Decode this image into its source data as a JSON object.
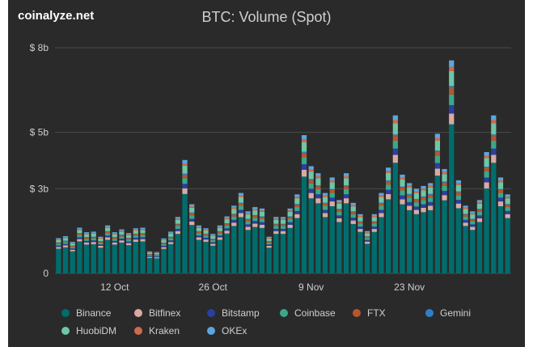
{
  "brand": "coinalyze.net",
  "title": "BTC: Volume (Spot)",
  "chart_data": {
    "type": "bar",
    "stacked": true,
    "title": "BTC: Volume (Spot)",
    "xlabel": "",
    "ylabel": "",
    "ylim": [
      0,
      8.2
    ],
    "yticks": [
      0,
      3,
      5,
      8
    ],
    "ytick_labels": [
      "0",
      "$ 3b",
      "$ 5b",
      "$ 8b"
    ],
    "xtick_labels": [
      {
        "label": "12 Oct",
        "index": 8
      },
      {
        "label": "26 Oct",
        "index": 22
      },
      {
        "label": "9 Nov",
        "index": 36
      },
      {
        "label": "23 Nov",
        "index": 50
      }
    ],
    "grid": "horizontal",
    "legend_position": "bottom",
    "totals_billion": [
      1.25,
      1.32,
      1.12,
      1.62,
      1.46,
      1.48,
      1.3,
      1.7,
      1.46,
      1.56,
      1.43,
      1.6,
      1.62,
      0.78,
      0.76,
      1.24,
      1.48,
      2.0,
      4.02,
      2.45,
      1.7,
      1.6,
      1.4,
      1.7,
      2.02,
      2.4,
      2.85,
      2.2,
      2.35,
      2.3,
      1.3,
      2.0,
      2.0,
      2.3,
      2.8,
      4.9,
      3.8,
      3.55,
      2.85,
      3.4,
      2.6,
      3.55,
      2.5,
      2.1,
      1.5,
      2.1,
      2.85,
      3.75,
      5.6,
      3.5,
      3.2,
      3.0,
      3.1,
      3.2,
      4.95,
      3.7,
      7.55,
      3.3,
      2.4,
      2.2,
      2.6,
      4.3,
      5.6,
      3.4,
      2.8
    ],
    "series": [
      {
        "name": "Binance",
        "color": "#006d6d",
        "share": 0.7
      },
      {
        "name": "Bitfinex",
        "color": "#d9aaa2",
        "share": 0.05
      },
      {
        "name": "Bitstamp",
        "color": "#2a3fa3",
        "share": 0.04
      },
      {
        "name": "Coinbase",
        "color": "#3aa88a",
        "share": 0.05
      },
      {
        "name": "FTX",
        "color": "#b8552c",
        "share": 0.03
      },
      {
        "name": "Gemini",
        "color": "#2e7fc8",
        "share": 0.01
      },
      {
        "name": "HuobiDM",
        "color": "#6ec6a6",
        "share": 0.07
      },
      {
        "name": "Kraken",
        "color": "#d06a4a",
        "share": 0.02
      },
      {
        "name": "OKEx",
        "color": "#5aa7e0",
        "share": 0.03
      }
    ]
  }
}
